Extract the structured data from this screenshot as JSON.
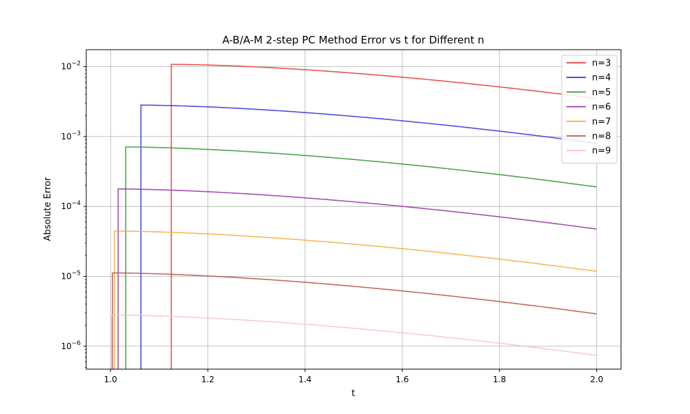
{
  "chart_data": {
    "type": "line",
    "title": "A-B/A-M 2-step PC Method Error vs t for Different n",
    "xlabel": "t",
    "ylabel": "Absolute Error",
    "xlim": [
      0.95,
      2.05
    ],
    "ylim": [
      4.7e-07,
      0.0175
    ],
    "yscale": "log",
    "grid": true,
    "legend": "top-right",
    "x_ticks": [
      1.0,
      1.2,
      1.4,
      1.6,
      1.8,
      2.0
    ],
    "x_tick_labels": [
      "1.0",
      "1.2",
      "1.4",
      "1.6",
      "1.8",
      "2.0"
    ],
    "y_ticks": [
      1e-06,
      1e-05,
      0.0001,
      0.001,
      0.01
    ],
    "y_tick_labels": [
      {
        "base": "10",
        "exp": "−6"
      },
      {
        "base": "10",
        "exp": "−5"
      },
      {
        "base": "10",
        "exp": "−4"
      },
      {
        "base": "10",
        "exp": "−3"
      },
      {
        "base": "10",
        "exp": "−2"
      }
    ],
    "series": [
      {
        "name": "n=3",
        "color": "#e8403a",
        "start_t": 1.125,
        "peak": 0.0108,
        "end": 0.0035
      },
      {
        "name": "n=4",
        "color": "#3a3ae0",
        "start_t": 1.0625,
        "peak": 0.00282,
        "end": 0.0008
      },
      {
        "name": "n=5",
        "color": "#3a9a3a",
        "start_t": 1.03125,
        "peak": 0.00071,
        "end": 0.00019
      },
      {
        "name": "n=6",
        "color": "#9a3aa8",
        "start_t": 1.015625,
        "peak": 0.000178,
        "end": 4.75e-05
      },
      {
        "name": "n=7",
        "color": "#f5b042",
        "start_t": 1.0078125,
        "peak": 4.45e-05,
        "end": 1.18e-05
      },
      {
        "name": "n=8",
        "color": "#b85a52",
        "start_t": 1.00390625,
        "peak": 1.12e-05,
        "end": 2.9e-06
      },
      {
        "name": "n=9",
        "color": "#f7c4d6",
        "start_t": 1.001953125,
        "peak": 2.8e-06,
        "end": 7.4e-07
      }
    ]
  }
}
